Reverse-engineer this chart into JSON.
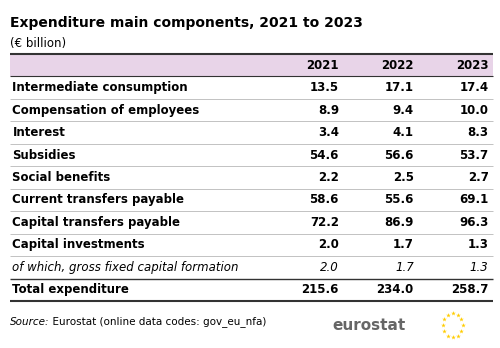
{
  "title": "Expenditure main components, 2021 to 2023",
  "subtitle": "(€ billion)",
  "columns": [
    "",
    "2021",
    "2022",
    "2023"
  ],
  "rows": [
    {
      "label": "Intermediate consumption",
      "values": [
        "13.5",
        "17.1",
        "17.4"
      ],
      "bold": true,
      "italic": false
    },
    {
      "label": "Compensation of employees",
      "values": [
        "8.9",
        "9.4",
        "10.0"
      ],
      "bold": true,
      "italic": false
    },
    {
      "label": "Interest",
      "values": [
        "3.4",
        "4.1",
        "8.3"
      ],
      "bold": true,
      "italic": false
    },
    {
      "label": "Subsidies",
      "values": [
        "54.6",
        "56.6",
        "53.7"
      ],
      "bold": true,
      "italic": false
    },
    {
      "label": "Social benefits",
      "values": [
        "2.2",
        "2.5",
        "2.7"
      ],
      "bold": true,
      "italic": false
    },
    {
      "label": "Current transfers payable",
      "values": [
        "58.6",
        "55.6",
        "69.1"
      ],
      "bold": true,
      "italic": false
    },
    {
      "label": "Capital transfers payable",
      "values": [
        "72.2",
        "86.9",
        "96.3"
      ],
      "bold": true,
      "italic": false
    },
    {
      "label": "Capital investments",
      "values": [
        "2.0",
        "1.7",
        "1.3"
      ],
      "bold": true,
      "italic": false
    },
    {
      "label": "of which, gross fixed capital formation",
      "values": [
        "2.0",
        "1.7",
        "1.3"
      ],
      "bold": false,
      "italic": true
    },
    {
      "label": "Total expenditure",
      "values": [
        "215.6",
        "234.0",
        "258.7"
      ],
      "bold": true,
      "italic": false
    }
  ],
  "header_bg": "#e8d4e8",
  "source_text_italic": "Source:",
  "source_text_normal": "  Eurostat (online data codes: gov_eu_nfa)",
  "title_fontsize": 10,
  "subtitle_fontsize": 8.5,
  "header_fontsize": 8.5,
  "cell_fontsize": 8.5,
  "source_fontsize": 7.5,
  "eurostat_fontsize": 11,
  "background_color": "#ffffff",
  "text_color": "#000000",
  "line_color_heavy": "#333333",
  "line_color_light": "#aaaaaa",
  "eurostat_color": "#666666",
  "flag_color": "#003399",
  "star_color": "#FFCC00"
}
